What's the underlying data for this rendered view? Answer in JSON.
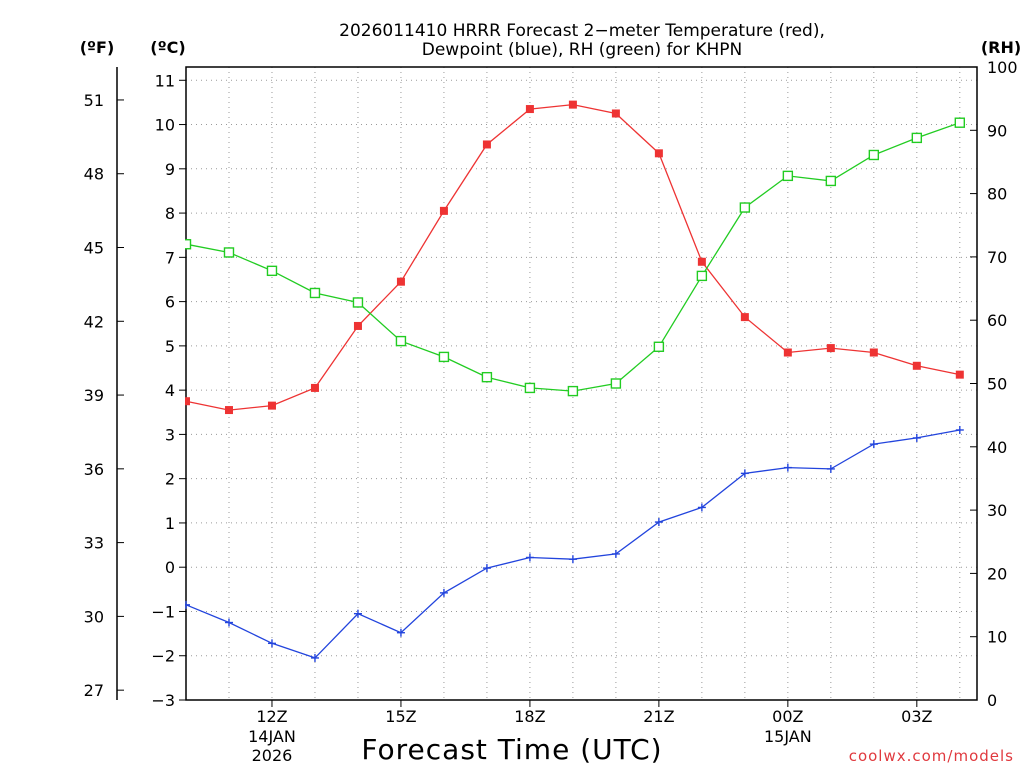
{
  "chart_data": {
    "type": "line",
    "title": "2026011410 HRRR Forecast 2−meter Temperature (red),",
    "subtitle": "Dewpoint (blue), RH (green) for KHPN",
    "xlabel": "Forecast Time (UTC)",
    "unit_labels": {
      "fahrenheit": "(ºF)",
      "celsius": "(ºC)",
      "rh": "(RH)"
    },
    "credit": "coolwx.com/models",
    "x_hours": [
      10,
      11,
      12,
      13,
      14,
      15,
      16,
      17,
      18,
      19,
      20,
      21,
      22,
      23,
      24,
      25,
      26,
      27,
      28
    ],
    "xlim": [
      10,
      28.4
    ],
    "x_ticks": [
      {
        "hour": 12,
        "label": "12Z",
        "date1": "14JAN",
        "date2": "2026"
      },
      {
        "hour": 15,
        "label": "15Z",
        "date1": "",
        "date2": ""
      },
      {
        "hour": 18,
        "label": "18Z",
        "date1": "",
        "date2": ""
      },
      {
        "hour": 21,
        "label": "21Z",
        "date1": "",
        "date2": ""
      },
      {
        "hour": 24,
        "label": "00Z",
        "date1": "15JAN",
        "date2": ""
      },
      {
        "hour": 27,
        "label": "03Z",
        "date1": "",
        "date2": ""
      }
    ],
    "ylim_celsius": [
      -3,
      11.3
    ],
    "y_ticks_celsius": [
      "-3",
      "-2",
      "-1",
      "0",
      "1",
      "2",
      "3",
      "4",
      "5",
      "6",
      "7",
      "8",
      "9",
      "10",
      "11"
    ],
    "y_ticks_fahrenheit": [
      "27",
      "30",
      "33",
      "36",
      "39",
      "42",
      "45",
      "48",
      "51"
    ],
    "ylim_rh": [
      0,
      100
    ],
    "y_ticks_rh": [
      "0",
      "10",
      "20",
      "30",
      "40",
      "50",
      "60",
      "70",
      "80",
      "90",
      "100"
    ],
    "series": [
      {
        "name": "Temperature",
        "axis": "celsius",
        "color": "#ee3333",
        "marker": "filled-square",
        "values": [
          3.75,
          3.55,
          3.65,
          4.05,
          5.45,
          6.45,
          8.05,
          9.55,
          10.35,
          10.45,
          10.25,
          9.35,
          6.9,
          5.65,
          4.85,
          4.95,
          4.85,
          4.55,
          4.35
        ]
      },
      {
        "name": "Dewpoint",
        "axis": "celsius",
        "color": "#2244dd",
        "marker": "plus",
        "values": [
          -0.85,
          -1.25,
          -1.72,
          -2.05,
          -1.05,
          -1.48,
          -0.58,
          -0.02,
          0.22,
          0.18,
          0.3,
          1.02,
          1.35,
          2.12,
          2.25,
          2.22,
          2.78,
          2.92,
          3.1
        ]
      },
      {
        "name": "RH",
        "axis": "rh",
        "color": "#22cc22",
        "marker": "open-square",
        "values": [
          72,
          70.7,
          67.8,
          64.3,
          62.8,
          56.7,
          54.2,
          51,
          49.3,
          48.8,
          50,
          55.8,
          67,
          77.8,
          82.8,
          82,
          86.1,
          88.8,
          91.2
        ]
      }
    ]
  }
}
